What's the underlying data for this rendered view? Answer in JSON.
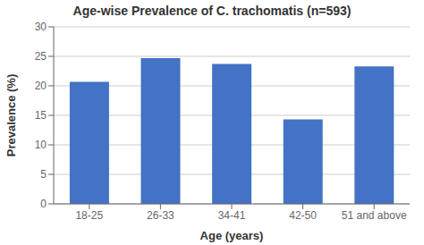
{
  "chart_data": {
    "type": "bar",
    "title": "Age-wise Prevalence of C. trachomatis (n=593)",
    "xlabel": "Age (years)",
    "ylabel": "Prevalence (%)",
    "categories": [
      "18-25",
      "26-33",
      "34-41",
      "42-50",
      "51 and above"
    ],
    "values": [
      20.7,
      24.7,
      23.7,
      14.3,
      23.3
    ],
    "color": "#4472C4",
    "ylim": [
      0,
      30
    ],
    "yticks": [
      0,
      5,
      10,
      15,
      20,
      25,
      30
    ],
    "grid": true
  }
}
